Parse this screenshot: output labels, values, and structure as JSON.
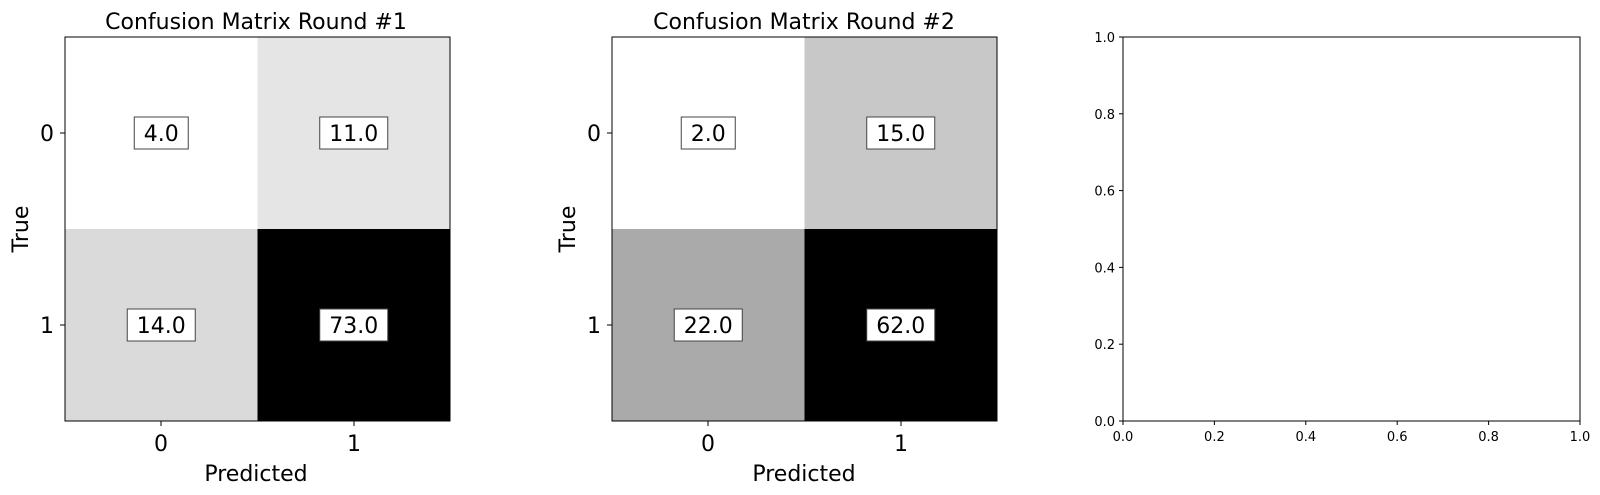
{
  "chart_data": [
    {
      "type": "heatmap",
      "title": "Confusion Matrix Round #1",
      "xlabel": "Predicted",
      "ylabel": "True",
      "x_categories": [
        "0",
        "1"
      ],
      "y_categories": [
        "0",
        "1"
      ],
      "values": [
        [
          4.0,
          11.0
        ],
        [
          14.0,
          73.0
        ]
      ],
      "value_labels": [
        [
          "4.0",
          "11.0"
        ],
        [
          "14.0",
          "73.0"
        ]
      ],
      "colormap": "grayscale, white = low, black = high",
      "grid": false
    },
    {
      "type": "heatmap",
      "title": "Confusion Matrix Round #2",
      "xlabel": "Predicted",
      "ylabel": "True",
      "x_categories": [
        "0",
        "1"
      ],
      "y_categories": [
        "0",
        "1"
      ],
      "values": [
        [
          2.0,
          15.0
        ],
        [
          22.0,
          62.0
        ]
      ],
      "value_labels": [
        [
          "2.0",
          "15.0"
        ],
        [
          "22.0",
          "62.0"
        ]
      ],
      "colormap": "grayscale, white = low, black = high",
      "grid": false
    },
    {
      "type": "scatter",
      "title": "",
      "xlabel": "",
      "ylabel": "",
      "xlim": [
        0.0,
        1.0
      ],
      "ylim": [
        0.0,
        1.0
      ],
      "x_ticks": [
        "0.0",
        "0.2",
        "0.4",
        "0.6",
        "0.8",
        "1.0"
      ],
      "y_ticks": [
        "0.0",
        "0.2",
        "0.4",
        "0.6",
        "0.8",
        "1.0"
      ],
      "series": [],
      "grid": false
    }
  ]
}
